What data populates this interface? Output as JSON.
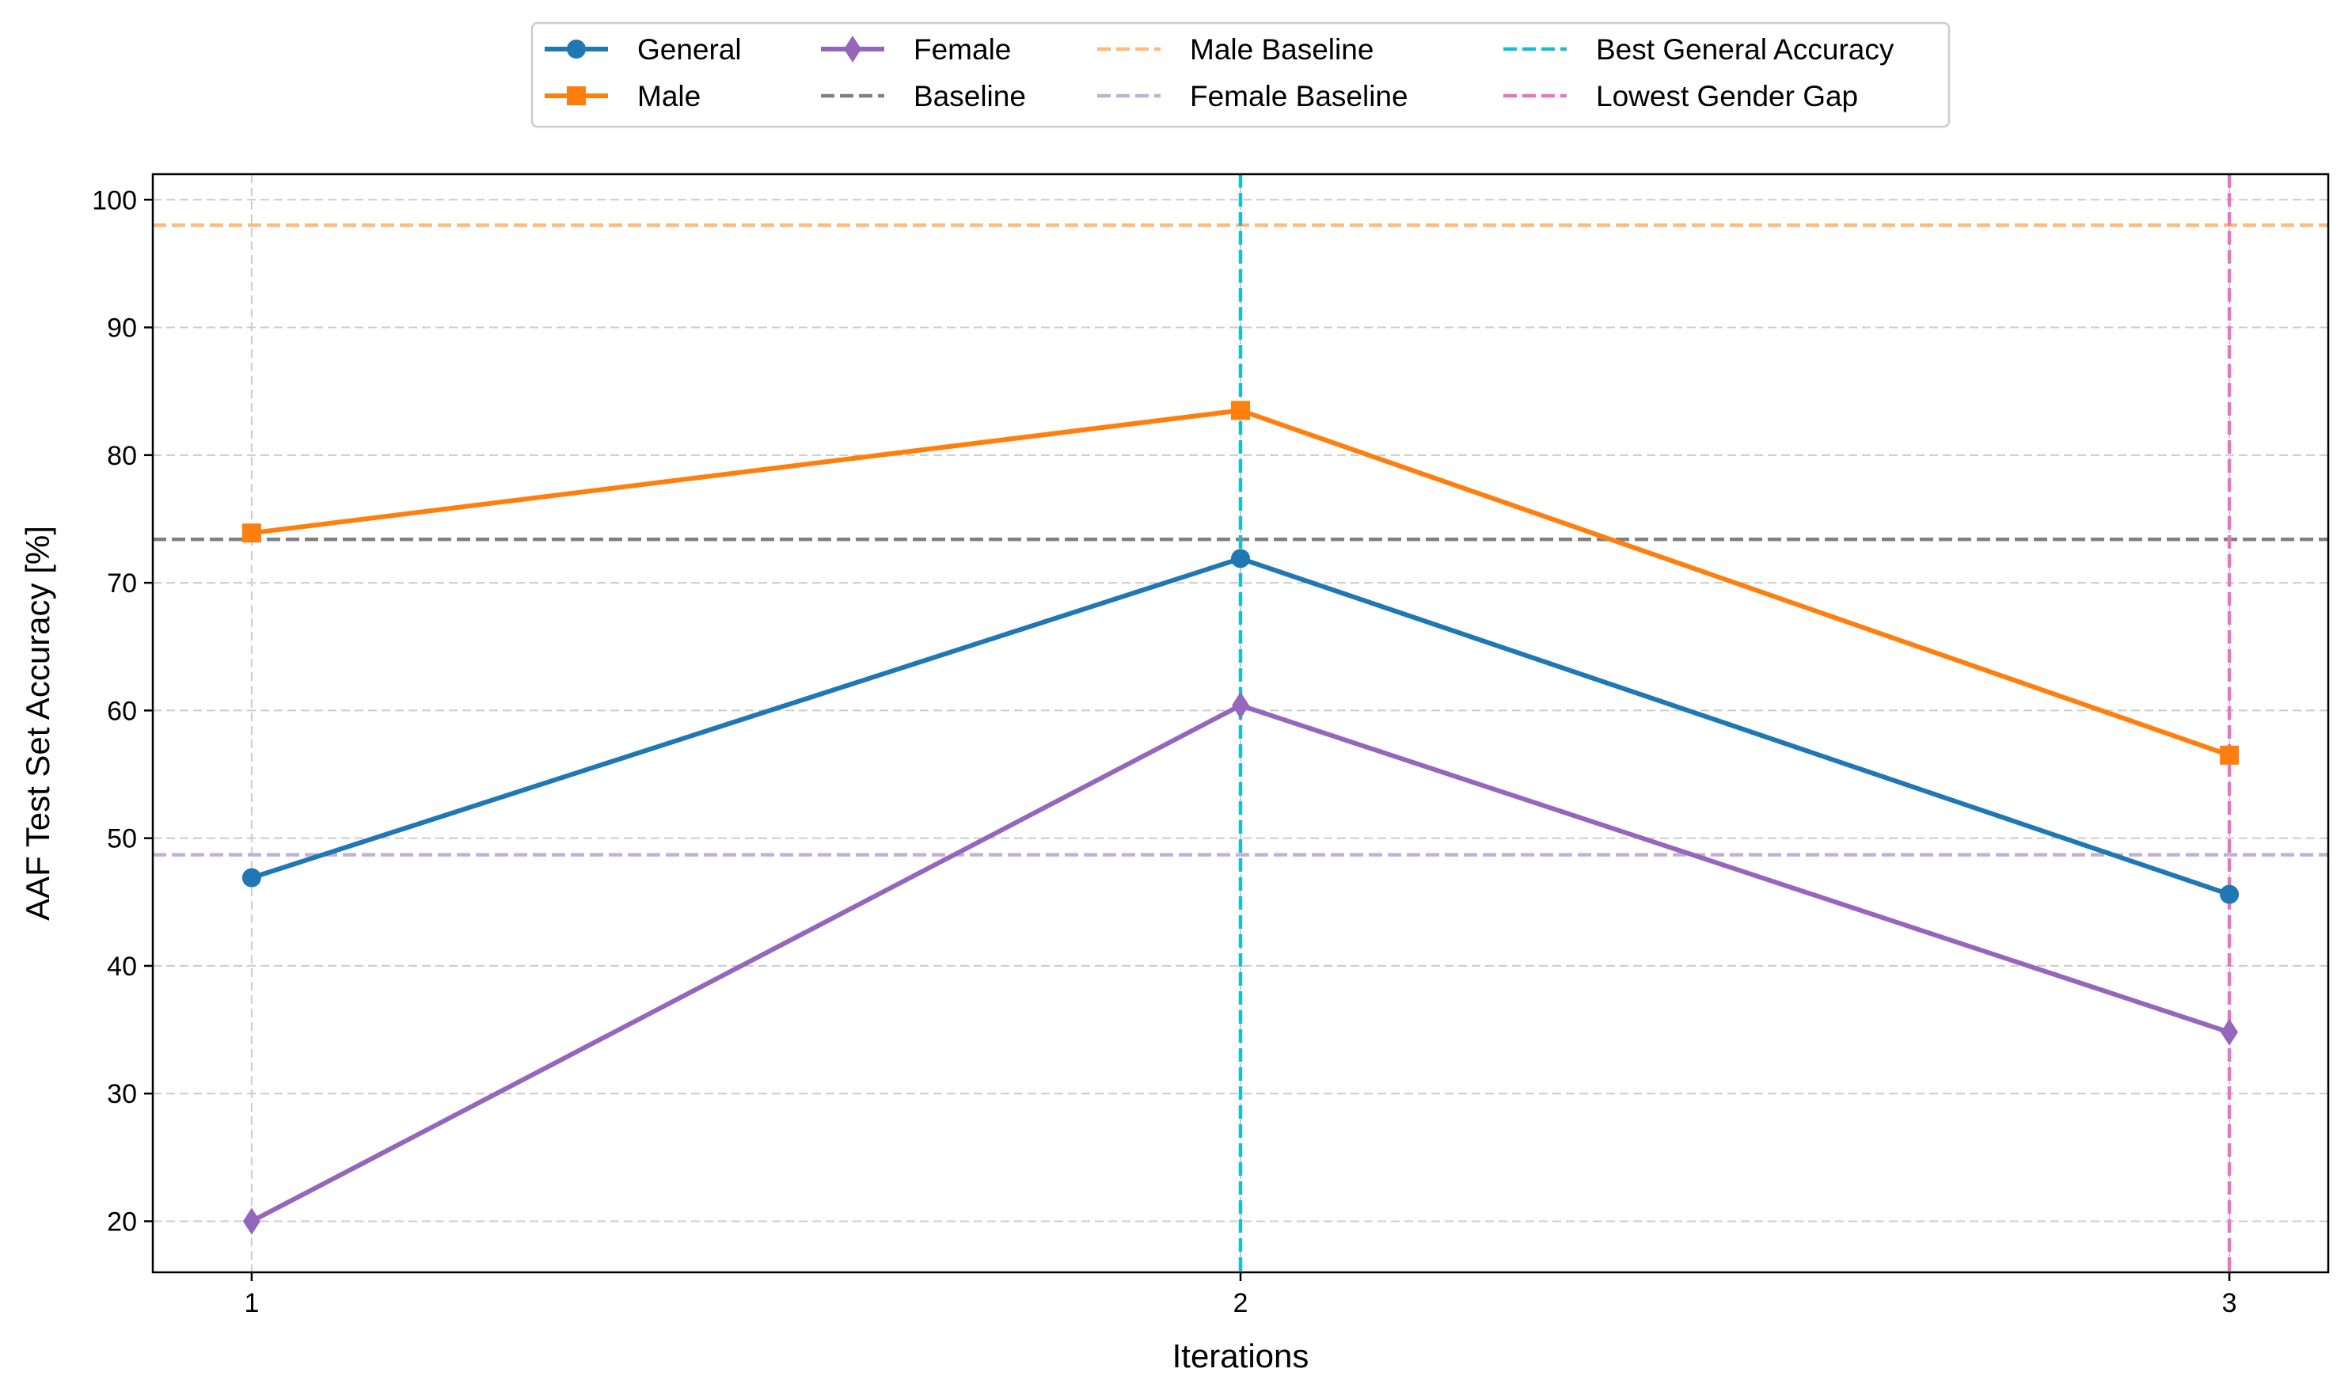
{
  "chart_data": {
    "type": "line",
    "title": "",
    "xlabel": "Iterations",
    "ylabel": "AAF Test Set Accuracy [%]",
    "x": [
      1,
      2,
      3
    ],
    "x_ticks": [
      "1",
      "2",
      "3"
    ],
    "xlim": [
      0.9,
      3.1
    ],
    "ylim": [
      16,
      102
    ],
    "y_ticks": [
      20,
      30,
      40,
      50,
      60,
      70,
      80,
      90,
      100
    ],
    "grid": true,
    "legend_position": "top-center, above plot",
    "series": [
      {
        "name": "General",
        "values": [
          46.9,
          71.9,
          45.6
        ],
        "color": "#1f77b4",
        "marker": "circle"
      },
      {
        "name": "Male",
        "values": [
          73.9,
          83.5,
          56.5
        ],
        "color": "#ff7f0e",
        "marker": "square"
      },
      {
        "name": "Female",
        "values": [
          20.0,
          60.4,
          34.8
        ],
        "color": "#9467bd",
        "marker": "diamond"
      }
    ],
    "reference_lines": [
      {
        "name": "Baseline",
        "orientation": "horizontal",
        "value": 73.4,
        "color": "#7f7f7f"
      },
      {
        "name": "Male Baseline",
        "orientation": "horizontal",
        "value": 98.0,
        "color": "#ffbb78"
      },
      {
        "name": "Female Baseline",
        "orientation": "horizontal",
        "value": 48.7,
        "color": "#c5b0d5"
      },
      {
        "name": "Best General Accuracy",
        "orientation": "vertical",
        "value": 2,
        "color": "#17becf"
      },
      {
        "name": "Lowest Gender Gap",
        "orientation": "vertical",
        "value": 3,
        "color": "#e377c2"
      }
    ],
    "legend": [
      "General",
      "Male",
      "Female",
      "Baseline",
      "Male Baseline",
      "Female Baseline",
      "Best General Accuracy",
      "Lowest Gender Gap"
    ]
  }
}
